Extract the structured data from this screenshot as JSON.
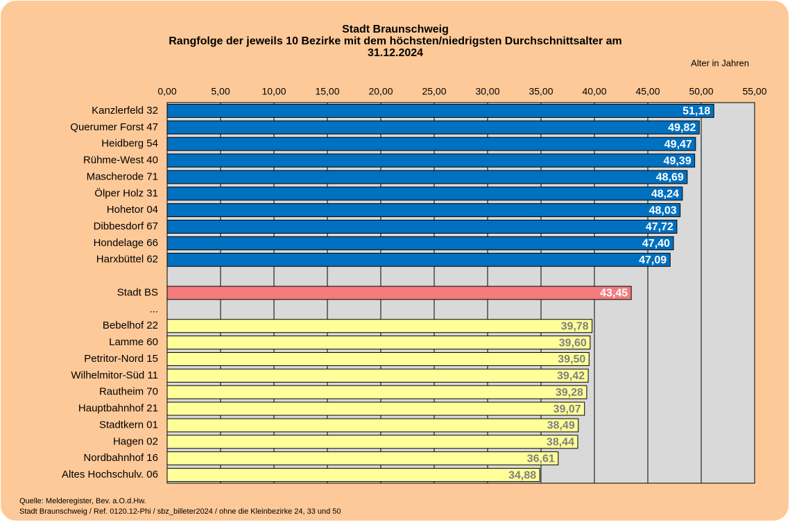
{
  "chart_data": {
    "type": "bar",
    "orientation": "horizontal",
    "title": "Stadt Braunschweig",
    "subtitle": [
      "Rangfolge der jeweils 10 Bezirke mit dem höchsten/niedrigsten  Durchschnittsalter  am",
      "31.12.2024"
    ],
    "axis_label": "Alter in Jahren",
    "categories": [
      "Kanzlerfeld 32",
      "Querumer Forst 47",
      "Heidberg 54",
      "Rühme-West 40",
      "Mascherode 71",
      "Ölper Holz 31",
      "Hohetor 04",
      "Dibbesdorf 67",
      "Hondelage 66",
      "Harxbüttel 62",
      null,
      "Stadt BS",
      "...",
      "Bebelhof 22",
      "Lamme 60",
      "Petritor-Nord 15",
      "Wilhelmitor-Süd 11",
      "Rautheim 70",
      "Hauptbahnhof 21",
      "Stadtkern 01",
      "Hagen 02",
      "Nordbahnhof 16",
      "Altes Hochschulv. 06"
    ],
    "values": [
      51.18,
      49.82,
      49.47,
      49.39,
      48.69,
      48.24,
      48.03,
      47.72,
      47.4,
      47.09,
      null,
      43.45,
      null,
      39.78,
      39.6,
      39.5,
      39.42,
      39.28,
      39.07,
      38.49,
      38.44,
      36.61,
      34.88
    ],
    "value_labels": [
      "51,18",
      "49,82",
      "49,47",
      "49,39",
      "48,69",
      "48,24",
      "48,03",
      "47,72",
      "47,40",
      "47,09",
      null,
      "43,45",
      null,
      "39,78",
      "39,60",
      "39,50",
      "39,42",
      "39,28",
      "39,07",
      "38,49",
      "38,44",
      "36,61",
      "34,88"
    ],
    "colors": [
      "#0070c0",
      "#0070c0",
      "#0070c0",
      "#0070c0",
      "#0070c0",
      "#0070c0",
      "#0070c0",
      "#0070c0",
      "#0070c0",
      "#0070c0",
      null,
      "#f47c7c",
      null,
      "#ffff99",
      "#ffff99",
      "#ffff99",
      "#ffff99",
      "#ffff99",
      "#ffff99",
      "#ffff99",
      "#ffff99",
      "#ffff99",
      "#ffff99"
    ],
    "label_colors": [
      "#ffffff",
      "#ffffff",
      "#ffffff",
      "#ffffff",
      "#ffffff",
      "#ffffff",
      "#ffffff",
      "#ffffff",
      "#ffffff",
      "#ffffff",
      null,
      "#ffffff",
      null,
      "#808080",
      "#808080",
      "#808080",
      "#808080",
      "#808080",
      "#808080",
      "#808080",
      "#808080",
      "#808080",
      "#808080"
    ],
    "xlim": [
      0,
      55
    ],
    "xticks": [
      {
        "value": 0,
        "label": "0,00"
      },
      {
        "value": 5,
        "label": "5,00"
      },
      {
        "value": 10,
        "label": "10,00"
      },
      {
        "value": 15,
        "label": "15,00"
      },
      {
        "value": 20,
        "label": "20,00"
      },
      {
        "value": 25,
        "label": "25,00"
      },
      {
        "value": 30,
        "label": "30,00"
      },
      {
        "value": 35,
        "label": "35,00"
      },
      {
        "value": 40,
        "label": "40,00"
      },
      {
        "value": 45,
        "label": "45,00"
      },
      {
        "value": 50,
        "label": "50,00"
      },
      {
        "value": 55,
        "label": "55,00"
      }
    ],
    "grid": true,
    "footnotes": [
      "Quelle: Melderegister,  Bev. a.O.d.Hw.",
      "Stadt Braunschweig  / Ref. 0120.12-Phi / sbz_billeter2024  / ohne die Kleinbezirke 24, 33 und 50"
    ]
  }
}
